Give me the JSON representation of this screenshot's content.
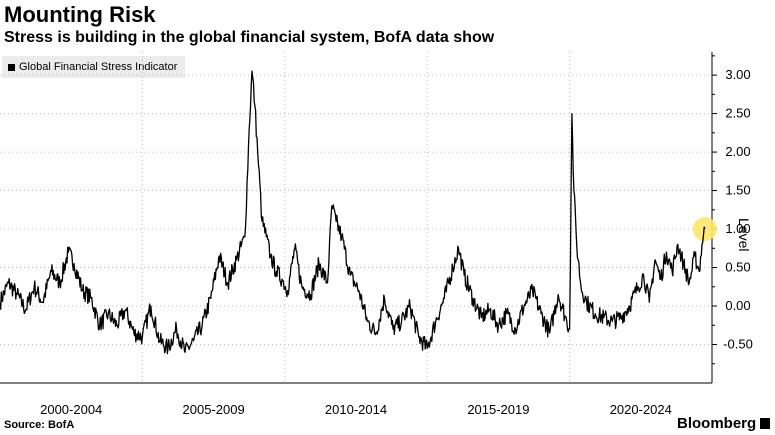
{
  "header": {
    "title": "Mounting Risk",
    "subtitle": "Stress is building in the global financial system, BofA data show"
  },
  "footer": {
    "source": "Source: BofA",
    "brand": "Bloomberg"
  },
  "chart_data": {
    "type": "line",
    "title": "Mounting Risk",
    "subtitle": "Stress is building in the global financial system, BofA data show",
    "xlabel": "",
    "ylabel": "Level",
    "legend": [
      "Global Financial Stress Indicator"
    ],
    "legend_position": "top-left",
    "ylim": [
      -1.0,
      3.3
    ],
    "xlim": [
      2000.0,
      2025.0
    ],
    "grid": "horizontal-dotted",
    "yticks": [
      {
        "value": 3.0,
        "label": "3.00"
      },
      {
        "value": 2.5,
        "label": "2.50"
      },
      {
        "value": 2.0,
        "label": "2.00"
      },
      {
        "value": 1.5,
        "label": "1.50"
      },
      {
        "value": 1.0,
        "label": "1.00"
      },
      {
        "value": 0.5,
        "label": "0.50"
      },
      {
        "value": 0.0,
        "label": "0.00"
      },
      {
        "value": -0.5,
        "label": "-0.50"
      }
    ],
    "xticks": [
      {
        "center": 2002.5,
        "label": "2000-2004"
      },
      {
        "center": 2007.5,
        "label": "2005-2009"
      },
      {
        "center": 2012.5,
        "label": "2010-2014"
      },
      {
        "center": 2017.5,
        "label": "2015-2019"
      },
      {
        "center": 2022.5,
        "label": "2020-2024"
      }
    ],
    "xdividers": [
      2005.0,
      2010.0,
      2015.0,
      2020.0
    ],
    "series": [
      {
        "name": "Global Financial Stress Indicator",
        "color": "#000000",
        "x": [
          2000.0,
          2000.3,
          2000.6,
          2000.9,
          2001.2,
          2001.5,
          2001.8,
          2002.1,
          2002.4,
          2002.6,
          2002.9,
          2003.2,
          2003.5,
          2003.8,
          2004.1,
          2004.4,
          2004.7,
          2005.0,
          2005.3,
          2005.6,
          2005.9,
          2006.2,
          2006.5,
          2006.8,
          2007.1,
          2007.4,
          2007.7,
          2008.0,
          2008.3,
          2008.6,
          2008.75,
          2008.85,
          2008.95,
          2009.05,
          2009.2,
          2009.35,
          2009.5,
          2009.7,
          2009.9,
          2010.1,
          2010.35,
          2010.6,
          2010.9,
          2011.2,
          2011.5,
          2011.65,
          2011.8,
          2012.0,
          2012.3,
          2012.6,
          2012.9,
          2013.2,
          2013.5,
          2013.8,
          2014.1,
          2014.4,
          2014.7,
          2015.0,
          2015.3,
          2015.6,
          2015.9,
          2016.1,
          2016.3,
          2016.6,
          2016.9,
          2017.2,
          2017.5,
          2017.8,
          2018.1,
          2018.4,
          2018.7,
          2019.0,
          2019.3,
          2019.6,
          2019.9,
          2020.0,
          2020.08,
          2020.15,
          2020.25,
          2020.4,
          2020.6,
          2020.9,
          2021.2,
          2021.5,
          2021.8,
          2022.1,
          2022.4,
          2022.6,
          2022.8,
          2023.0,
          2023.2,
          2023.4,
          2023.6,
          2023.8,
          2024.0,
          2024.2,
          2024.4,
          2024.55,
          2024.65,
          2024.75
        ],
        "values": [
          0.05,
          0.3,
          0.15,
          -0.05,
          0.25,
          0.05,
          0.45,
          0.3,
          0.7,
          0.55,
          0.2,
          0.1,
          -0.25,
          -0.1,
          -0.25,
          -0.05,
          -0.35,
          -0.4,
          0.0,
          -0.45,
          -0.55,
          -0.3,
          -0.6,
          -0.45,
          -0.25,
          0.1,
          0.65,
          0.3,
          0.6,
          0.9,
          2.3,
          3.05,
          2.6,
          2.0,
          1.1,
          0.9,
          0.65,
          0.45,
          0.35,
          0.2,
          0.75,
          0.25,
          0.15,
          0.55,
          0.3,
          1.3,
          1.1,
          0.9,
          0.4,
          0.2,
          -0.2,
          -0.35,
          0.1,
          -0.3,
          -0.2,
          0.0,
          -0.4,
          -0.55,
          -0.2,
          0.1,
          0.5,
          0.75,
          0.4,
          0.1,
          -0.15,
          -0.05,
          -0.25,
          -0.1,
          -0.3,
          0.0,
          0.2,
          -0.1,
          -0.35,
          0.15,
          -0.2,
          -0.3,
          2.5,
          1.5,
          0.8,
          0.25,
          0.05,
          -0.1,
          -0.15,
          -0.2,
          -0.15,
          0.0,
          0.25,
          0.4,
          0.05,
          0.6,
          0.35,
          0.7,
          0.45,
          0.8,
          0.55,
          0.3,
          0.65,
          0.45,
          0.8,
          1.0
        ]
      }
    ],
    "highlight_point": {
      "x": 2024.75,
      "value": 1.0,
      "color": "#ffe566"
    }
  }
}
